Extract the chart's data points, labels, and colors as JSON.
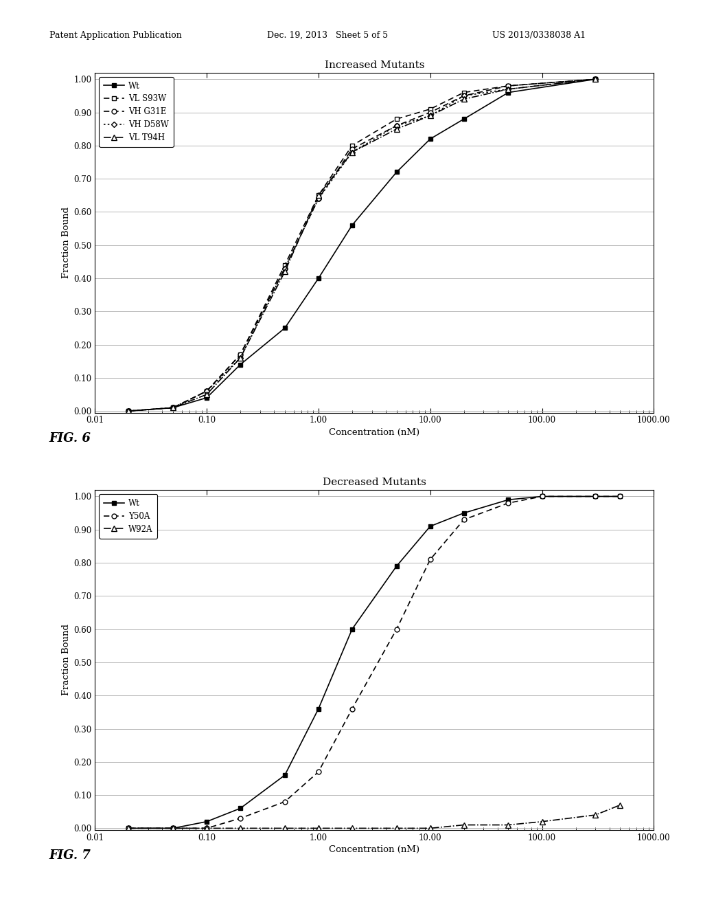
{
  "fig1": {
    "title": "Increased Mutants",
    "xlabel": "Concentration (nM)",
    "ylabel": "Fraction Bound",
    "series": [
      {
        "label": "Wt",
        "marker": "s",
        "markerfacecolor": "black",
        "markeredgecolor": "black",
        "color": "black",
        "linestyle": "solid",
        "x": [
          0.02,
          0.05,
          0.1,
          0.2,
          0.5,
          1.0,
          2.0,
          5.0,
          10.0,
          20.0,
          50.0,
          300.0
        ],
        "y": [
          0.0,
          0.01,
          0.04,
          0.14,
          0.25,
          0.4,
          0.56,
          0.72,
          0.82,
          0.88,
          0.96,
          1.0
        ]
      },
      {
        "label": "VL S93W",
        "marker": "s",
        "markerfacecolor": "white",
        "markeredgecolor": "black",
        "color": "black",
        "linestyle": "dashed",
        "x": [
          0.02,
          0.05,
          0.1,
          0.2,
          0.5,
          1.0,
          2.0,
          5.0,
          10.0,
          20.0,
          50.0,
          300.0
        ],
        "y": [
          0.0,
          0.01,
          0.06,
          0.17,
          0.44,
          0.65,
          0.8,
          0.88,
          0.91,
          0.96,
          0.98,
          1.0
        ]
      },
      {
        "label": "VH G31E",
        "marker": "o",
        "markerfacecolor": "white",
        "markeredgecolor": "black",
        "color": "black",
        "linestyle": "dashed",
        "x": [
          0.02,
          0.05,
          0.1,
          0.2,
          0.5,
          1.0,
          2.0,
          5.0,
          10.0,
          20.0,
          50.0,
          300.0
        ],
        "y": [
          0.0,
          0.01,
          0.06,
          0.17,
          0.43,
          0.64,
          0.79,
          0.86,
          0.9,
          0.95,
          0.98,
          1.0
        ]
      },
      {
        "label": "VH D58W",
        "marker": "D",
        "markerfacecolor": "white",
        "markeredgecolor": "black",
        "color": "black",
        "linestyle": "dotted",
        "x": [
          0.02,
          0.05,
          0.1,
          0.2,
          0.5,
          1.0,
          2.0,
          5.0,
          10.0,
          20.0,
          50.0,
          300.0
        ],
        "y": [
          0.0,
          0.01,
          0.06,
          0.16,
          0.43,
          0.64,
          0.78,
          0.86,
          0.89,
          0.95,
          0.97,
          1.0
        ]
      },
      {
        "label": "VL T94H",
        "marker": "^",
        "markerfacecolor": "white",
        "markeredgecolor": "black",
        "color": "black",
        "linestyle": "dashdot",
        "x": [
          0.02,
          0.05,
          0.1,
          0.2,
          0.5,
          1.0,
          2.0,
          5.0,
          10.0,
          20.0,
          50.0,
          300.0
        ],
        "y": [
          0.0,
          0.01,
          0.05,
          0.16,
          0.42,
          0.65,
          0.78,
          0.85,
          0.89,
          0.94,
          0.97,
          1.0
        ]
      }
    ],
    "xlim": [
      0.01,
      1000.0
    ],
    "ylim": [
      -0.005,
      1.02
    ],
    "yticks": [
      0.0,
      0.1,
      0.2,
      0.3,
      0.4,
      0.5,
      0.6,
      0.7,
      0.8,
      0.9,
      1.0
    ],
    "xtick_labels": [
      "0.01",
      "0.10",
      "1.00",
      "10.00",
      "100.00",
      "1000.00"
    ],
    "xtick_values": [
      0.01,
      0.1,
      1.0,
      10.0,
      100.0,
      1000.0
    ]
  },
  "fig2": {
    "title": "Decreased Mutants",
    "xlabel": "Concentration (nM)",
    "ylabel": "Fraction Bound",
    "series": [
      {
        "label": "Wt",
        "marker": "s",
        "markerfacecolor": "black",
        "markeredgecolor": "black",
        "color": "black",
        "linestyle": "solid",
        "x": [
          0.02,
          0.05,
          0.1,
          0.2,
          0.5,
          1.0,
          2.0,
          5.0,
          10.0,
          20.0,
          50.0,
          100.0,
          300.0,
          500.0
        ],
        "y": [
          0.0,
          0.0,
          0.02,
          0.06,
          0.16,
          0.36,
          0.6,
          0.79,
          0.91,
          0.95,
          0.99,
          1.0,
          1.0,
          1.0
        ]
      },
      {
        "label": "Y50A",
        "marker": "o",
        "markerfacecolor": "white",
        "markeredgecolor": "black",
        "color": "black",
        "linestyle": "dashed",
        "x": [
          0.02,
          0.05,
          0.1,
          0.2,
          0.5,
          1.0,
          2.0,
          5.0,
          10.0,
          20.0,
          50.0,
          100.0,
          300.0,
          500.0
        ],
        "y": [
          0.0,
          0.0,
          0.0,
          0.03,
          0.08,
          0.17,
          0.36,
          0.6,
          0.81,
          0.93,
          0.98,
          1.0,
          1.0,
          1.0
        ]
      },
      {
        "label": "W92A",
        "marker": "^",
        "markerfacecolor": "white",
        "markeredgecolor": "black",
        "color": "black",
        "linestyle": "dashdot",
        "x": [
          0.02,
          0.05,
          0.1,
          0.2,
          0.5,
          1.0,
          2.0,
          5.0,
          10.0,
          20.0,
          50.0,
          100.0,
          300.0,
          500.0
        ],
        "y": [
          0.0,
          0.0,
          0.0,
          0.0,
          0.0,
          0.0,
          0.0,
          0.0,
          0.0,
          0.01,
          0.01,
          0.02,
          0.04,
          0.07
        ]
      }
    ],
    "xlim": [
      0.01,
      1000.0
    ],
    "ylim": [
      -0.005,
      1.02
    ],
    "yticks": [
      0.0,
      0.1,
      0.2,
      0.3,
      0.4,
      0.5,
      0.6,
      0.7,
      0.8,
      0.9,
      1.0
    ],
    "xtick_labels": [
      "0.01",
      "0.10",
      "1.00",
      "10.00",
      "100.00",
      "1000.00"
    ],
    "xtick_values": [
      0.01,
      0.1,
      1.0,
      10.0,
      100.0,
      1000.0
    ]
  },
  "header": {
    "left": "Patent Application Publication",
    "center": "Dec. 19, 2013   Sheet 5 of 5",
    "right": "US 2013/0338038 A1",
    "fontsize": 9
  },
  "fig6_label": "FIG. 6",
  "fig7_label": "FIG. 7",
  "background_color": "#ffffff"
}
